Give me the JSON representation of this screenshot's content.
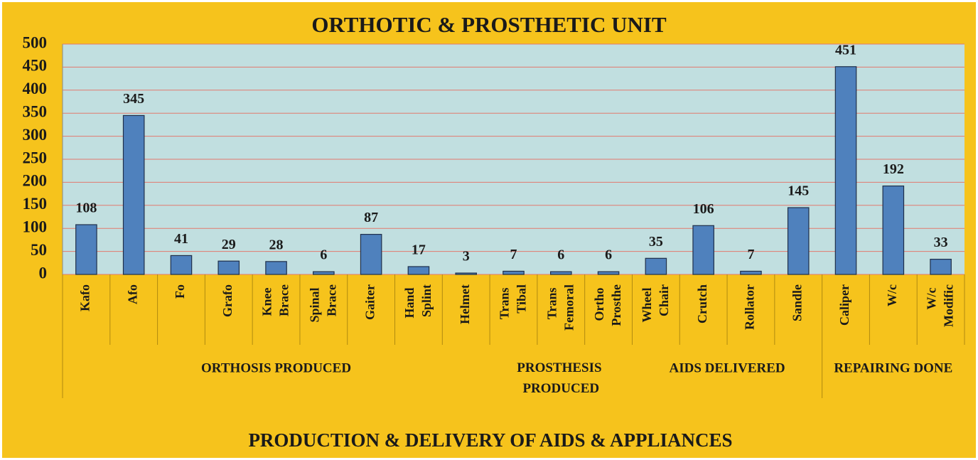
{
  "chart_data": {
    "type": "bar",
    "title": "ORTHOTIC & PROSTHETIC UNIT",
    "footer": "PRODUCTION & DELIVERY OF AIDS & APPLIANCES",
    "categories": [
      "Kafo",
      "Afo",
      "Fo",
      "Grafo",
      "Knee Brace",
      "Spinal Brace",
      "Gaiter",
      "Hand Splint",
      "Helmet",
      "Trans Tibal",
      "Trans Femoral",
      "Ortho Prosthe",
      "Wheel Chair",
      "Crutch",
      "Rollator",
      "Sandle",
      "Caliper",
      "W/c",
      "W/c Modific"
    ],
    "values": [
      108,
      345,
      41,
      29,
      28,
      6,
      87,
      17,
      3,
      7,
      6,
      6,
      35,
      106,
      7,
      145,
      451,
      192,
      33
    ],
    "groups": [
      {
        "label": "ORTHOSIS PRODUCED",
        "span": 9
      },
      {
        "label": "PROSTHESIS PRODUCED",
        "span": 3
      },
      {
        "label": "AIDS DELIVERED",
        "span": 4
      },
      {
        "label": "REPAIRING DONE",
        "span": 3
      }
    ],
    "color": "#4f81bd",
    "ylim": [
      0,
      500
    ],
    "yticks": [
      0,
      50,
      100,
      150,
      200,
      250,
      300,
      350,
      400,
      450,
      500
    ],
    "grid": true
  }
}
